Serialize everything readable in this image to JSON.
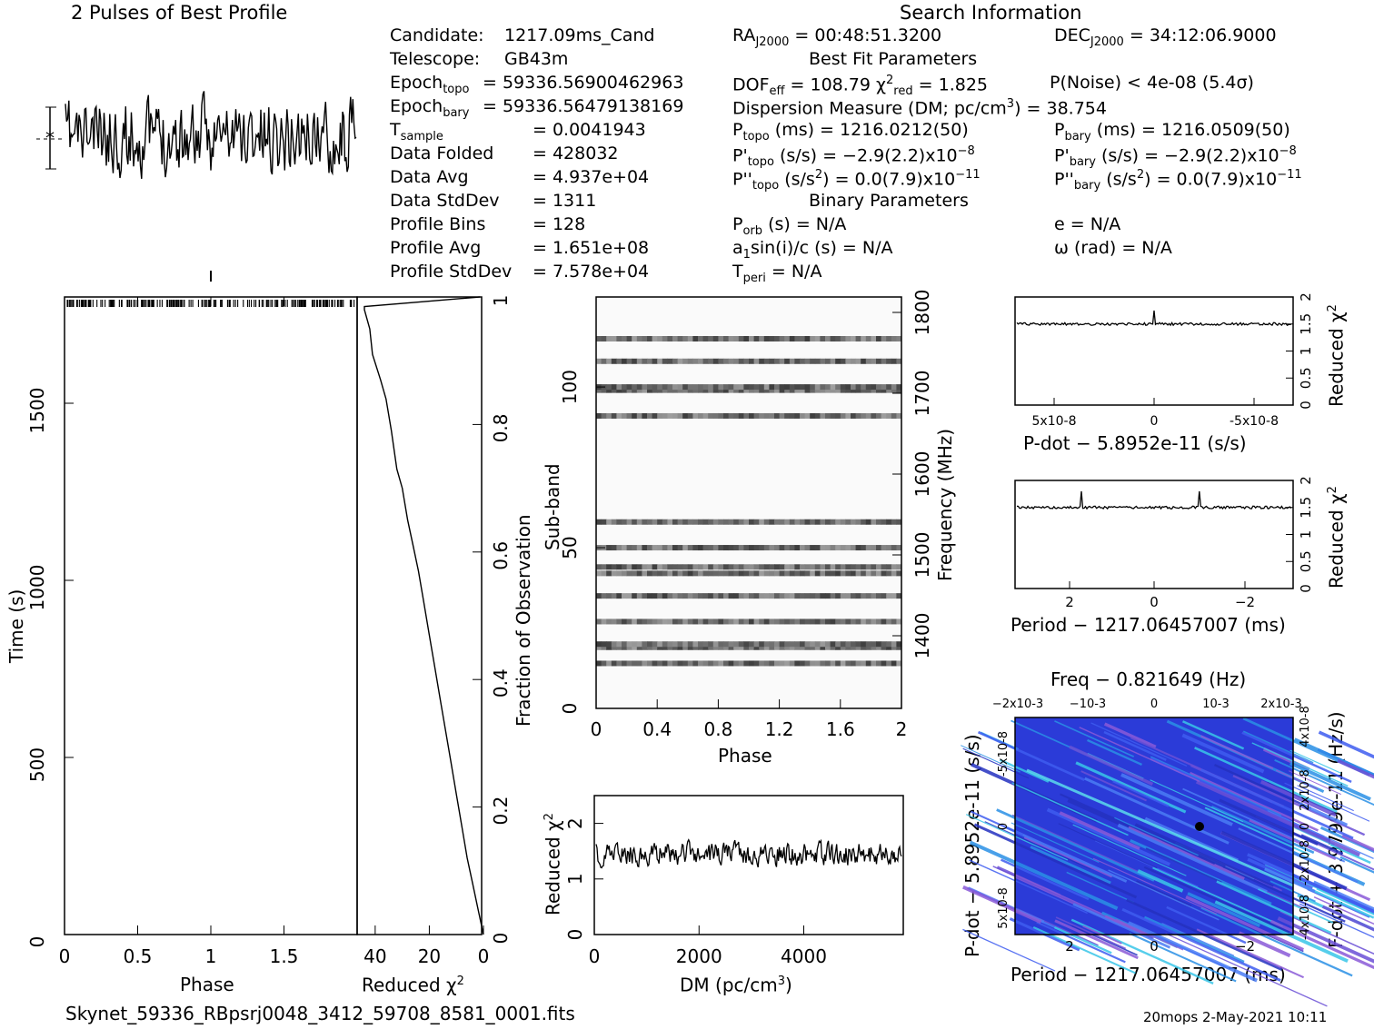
{
  "header": {
    "profile_title": "2 Pulses of Best Profile",
    "search_title": "Search Information",
    "best_fit_title": "Best Fit Parameters",
    "binary_title": "Binary Parameters"
  },
  "info_left": [
    {
      "label": "Candidate:",
      "value": "1217.09ms_Cand"
    },
    {
      "label": "Telescope:",
      "value": "GB43m"
    },
    {
      "label": "Epoch",
      "sub": "topo",
      "value": "= 59336.56900462963"
    },
    {
      "label": "Epoch",
      "sub": "bary",
      "value": "= 59336.56479138169"
    },
    {
      "label": "T",
      "sub": "sample",
      "value": "=   0.0041943"
    },
    {
      "label": "Data Folded",
      "value": "=   428032"
    },
    {
      "label": "Data Avg",
      "value": "=   4.937e+04"
    },
    {
      "label": "Data StdDev",
      "value": "=   1311"
    },
    {
      "label": "Profile Bins",
      "value": "=   128"
    },
    {
      "label": "Profile Avg",
      "value": "=   1.651e+08"
    },
    {
      "label": "Profile StdDev",
      "value": "=   7.578e+04"
    }
  ],
  "search_info": {
    "ra": "= 00:48:51.3200",
    "dec": "= 34:12:06.9000",
    "dof": "= 108.79",
    "chi2": "= 1.825",
    "pnoise": "P(Noise) < 4e-08  (5.4σ)",
    "dm": "Dispersion Measure (DM; pc/cm",
    "dm_value": ") = 38.754",
    "p_topo": "(ms) =  1216.0212(50)",
    "p_bary": "(ms) =  1216.0509(50)",
    "pd_topo": "(s/s) = −2.9(2.2)x10",
    "pd_bary": "(s/s) = −2.9(2.2)x10",
    "pdd_topo": "(s/s",
    "pdd_topo_val": ") = 0.0(7.9)x10",
    "pdd_bary": "(s/s",
    "pdd_bary_val": ") = 0.0(7.9)x10",
    "p_orb": "(s) = N/A",
    "e": "e = N/A",
    "a1": "a",
    "a1_val": "sin(i)/c (s) = N/A",
    "omega": "ω (rad) = N/A",
    "t_peri": "= N/A"
  },
  "axes": {
    "time_label": "Time (s)",
    "phase_label": "Phase",
    "reduced_chi2": "Reduced χ",
    "fraction_label": "Fraction of Observation",
    "subband_label": "Sub-band",
    "freq_label": "Frequency (MHz)",
    "dm_label": "DM (pc/cm",
    "pdot_label": "P-dot − 5.8952e-11 (s/s)",
    "period_label": "Period − 1217.06457007 (ms)",
    "freq_top_label": "Freq − 0.821649 (Hz)",
    "pdot_left_label": "P-dot − 5.8952e-11 (s/s)",
    "fdot_right_label": "F-dot + 3.9799e-11 (Hz/s)"
  },
  "footer": {
    "filename": "Skynet_59336_RBpsrj0048_3412_59708_8581_0001.fits",
    "stamp": "20mops  2-May-2021 10:11"
  },
  "chart_data": [
    {
      "type": "line",
      "title": "2 Pulses of Best Profile",
      "xlabel": "Phase",
      "xlim": [
        0,
        2
      ],
      "note": "pulse profile, two pulses, noisy"
    },
    {
      "type": "heatmap",
      "name": "time-phase",
      "xlabel": "Phase",
      "ylabel": "Time (s)",
      "xlim": [
        0,
        2
      ],
      "ylim": [
        0,
        1800
      ],
      "x_ticks": [
        "0",
        "0.5",
        "1",
        "1.5"
      ],
      "y_ticks": [
        "0",
        "500",
        "1000",
        "1500"
      ]
    },
    {
      "type": "line",
      "name": "chi2-vs-time",
      "xlabel": "Reduced χ2",
      "ylabel": "Fraction of Observation",
      "x_ticks": [
        "40",
        "20",
        "0"
      ],
      "y_ticks": [
        "0",
        "0.2",
        "0.4",
        "0.6",
        "0.8",
        "1"
      ],
      "x": [
        0,
        2,
        4,
        6,
        8,
        10,
        12,
        14,
        16,
        18,
        20,
        22,
        24,
        26,
        28,
        30,
        32,
        33,
        34,
        36,
        38,
        41,
        42,
        44
      ],
      "y": [
        0.0,
        0.04,
        0.08,
        0.12,
        0.17,
        0.22,
        0.27,
        0.32,
        0.37,
        0.42,
        0.47,
        0.52,
        0.57,
        0.61,
        0.65,
        0.7,
        0.73,
        0.76,
        0.79,
        0.84,
        0.87,
        0.91,
        0.95,
        0.98
      ]
    },
    {
      "type": "heatmap",
      "name": "subband-phase",
      "xlabel": "Phase",
      "ylabel": "Sub-band",
      "y2label": "Frequency (MHz)",
      "xlim": [
        0,
        2
      ],
      "ylim": [
        0,
        128
      ],
      "x_ticks": [
        "0",
        "0.4",
        "0.8",
        "1.2",
        "1.6",
        "2"
      ],
      "y_ticks": [
        "0",
        "50",
        "100"
      ],
      "y2_ticks": [
        "1400",
        "1500",
        "1600",
        "1700",
        "1800"
      ],
      "dark_subbands": [
        14,
        19,
        20,
        27,
        35,
        42,
        44,
        50,
        58,
        91,
        99,
        100,
        108,
        115
      ]
    },
    {
      "type": "line",
      "name": "chi2-vs-dm",
      "xlabel": "DM (pc/cm3)",
      "ylabel": "Reduced χ2",
      "xlim": [
        0,
        5900
      ],
      "ylim": [
        0,
        2.5
      ],
      "x_ticks": [
        "0",
        "2000",
        "4000"
      ],
      "y_ticks": [
        "0",
        "1",
        "2"
      ]
    },
    {
      "type": "line",
      "name": "chi2-vs-pdot",
      "xlabel": "P-dot − 5.8952e-11 (s/s)",
      "ylabel": "Reduced χ2",
      "x_ticks": [
        "5x10-8",
        "0",
        "-5x10-8"
      ],
      "y_ticks": [
        "0",
        "0.5",
        "1",
        "1.5",
        "2"
      ],
      "baseline": 1.5,
      "peak": 1.75
    },
    {
      "type": "line",
      "name": "chi2-vs-period",
      "xlabel": "Period − 1217.06457007 (ms)",
      "ylabel": "Reduced χ2",
      "x_ticks": [
        "2",
        "0",
        "−2"
      ],
      "y_ticks": [
        "0",
        "0.5",
        "1",
        "1.5",
        "2"
      ],
      "baseline": 1.5,
      "peak": 1.8
    },
    {
      "type": "heatmap",
      "name": "p-pdot",
      "xlabel": "Period − 1217.06457007 (ms)",
      "ylabel": "P-dot − 5.8952e-11 (s/s)",
      "x_ticks": [
        "2",
        "0",
        "−2"
      ],
      "top_ticks": [
        "−2x10-3",
        "−10-3",
        "0",
        "10-3",
        "2x10-3"
      ],
      "y_ticks": [
        "-5x10-8",
        "0",
        "5x10-8"
      ],
      "y2_ticks": [
        "4x10-8",
        "2x10-8",
        "0",
        "-2x10-8",
        "-4x10-8"
      ]
    }
  ]
}
